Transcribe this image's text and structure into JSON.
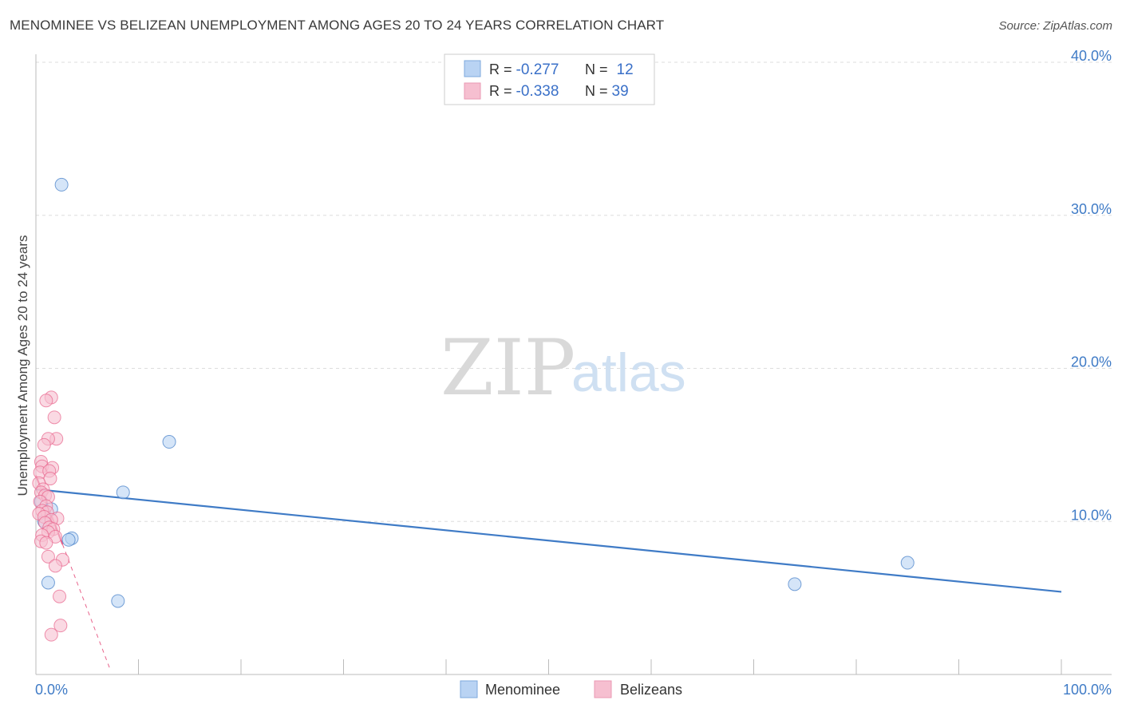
{
  "title": "MENOMINEE VS BELIZEAN UNEMPLOYMENT AMONG AGES 20 TO 24 YEARS CORRELATION CHART",
  "source": "Source: ZipAtlas.com",
  "watermark": {
    "zip": "ZIP",
    "atlas": "atlas"
  },
  "colors": {
    "blue": "#3f7bc6",
    "blue_fill": "#b9d3f3",
    "pink": "#e8648c",
    "pink_fill": "#f6bfd0",
    "grid": "#dddddd"
  },
  "legend_top": [
    {
      "r_label": "R = ",
      "r_value": "-0.277",
      "n_label": "N = ",
      "n_value": "12",
      "color": "blue"
    },
    {
      "r_label": "R = ",
      "r_value": "-0.338",
      "n_label": "N = ",
      "n_value": "39",
      "color": "pink"
    }
  ],
  "legend_bottom": [
    {
      "label": "Menominee",
      "color": "blue"
    },
    {
      "label": "Belizeans",
      "color": "pink"
    }
  ],
  "chart_data": {
    "type": "scatter",
    "title": "MENOMINEE VS BELIZEAN UNEMPLOYMENT AMONG AGES 20 TO 24 YEARS CORRELATION CHART",
    "xlabel": "",
    "ylabel": "Unemployment Among Ages 20 to 24 years",
    "xlim": [
      0,
      100
    ],
    "ylim": [
      0,
      40
    ],
    "x_tick_labels": [
      "0.0%",
      "100.0%"
    ],
    "y_ticks": [
      {
        "value": 10,
        "label": "10.0%"
      },
      {
        "value": 20,
        "label": "20.0%"
      },
      {
        "value": 30,
        "label": "30.0%"
      },
      {
        "value": 40,
        "label": "40.0%"
      }
    ],
    "grid": true,
    "series": [
      {
        "name": "Menominee",
        "color": "blue",
        "points": [
          [
            2.5,
            32.0
          ],
          [
            13.0,
            15.2
          ],
          [
            8.5,
            11.9
          ],
          [
            1.5,
            10.8
          ],
          [
            0.8,
            10.0
          ],
          [
            3.5,
            8.9
          ],
          [
            3.2,
            8.8
          ],
          [
            1.2,
            6.0
          ],
          [
            8.0,
            4.8
          ],
          [
            74.0,
            5.9
          ],
          [
            85.0,
            7.3
          ],
          [
            0.5,
            11.3
          ]
        ],
        "trend": {
          "x": [
            0,
            100
          ],
          "y": [
            12.1,
            5.4
          ],
          "style": "solid"
        }
      },
      {
        "name": "Belizeans",
        "color": "pink",
        "points": [
          [
            1.5,
            18.1
          ],
          [
            1.0,
            17.9
          ],
          [
            1.8,
            16.8
          ],
          [
            2.0,
            15.4
          ],
          [
            1.2,
            15.4
          ],
          [
            0.8,
            15.0
          ],
          [
            0.5,
            13.9
          ],
          [
            0.6,
            13.6
          ],
          [
            1.6,
            13.5
          ],
          [
            0.4,
            13.2
          ],
          [
            1.3,
            13.3
          ],
          [
            1.4,
            12.8
          ],
          [
            0.3,
            12.5
          ],
          [
            0.7,
            12.1
          ],
          [
            0.5,
            11.9
          ],
          [
            0.9,
            11.7
          ],
          [
            1.2,
            11.6
          ],
          [
            0.4,
            11.3
          ],
          [
            1.0,
            11.0
          ],
          [
            0.6,
            10.7
          ],
          [
            1.1,
            10.6
          ],
          [
            0.3,
            10.5
          ],
          [
            0.8,
            10.3
          ],
          [
            2.1,
            10.2
          ],
          [
            1.5,
            10.1
          ],
          [
            0.9,
            9.9
          ],
          [
            1.3,
            9.6
          ],
          [
            1.7,
            9.5
          ],
          [
            1.2,
            9.3
          ],
          [
            0.6,
            9.1
          ],
          [
            1.9,
            9.0
          ],
          [
            0.5,
            8.7
          ],
          [
            1.0,
            8.6
          ],
          [
            1.2,
            7.7
          ],
          [
            2.6,
            7.5
          ],
          [
            1.9,
            7.1
          ],
          [
            2.3,
            5.1
          ],
          [
            2.4,
            3.2
          ],
          [
            1.5,
            2.6
          ]
        ],
        "trend": {
          "x": [
            0,
            2.6
          ],
          "y": [
            13.0,
            8.5
          ],
          "style": "solid"
        },
        "trend_extension": {
          "x": [
            2.6,
            7.2
          ],
          "y": [
            8.5,
            0.4
          ],
          "style": "dashed"
        }
      }
    ]
  }
}
